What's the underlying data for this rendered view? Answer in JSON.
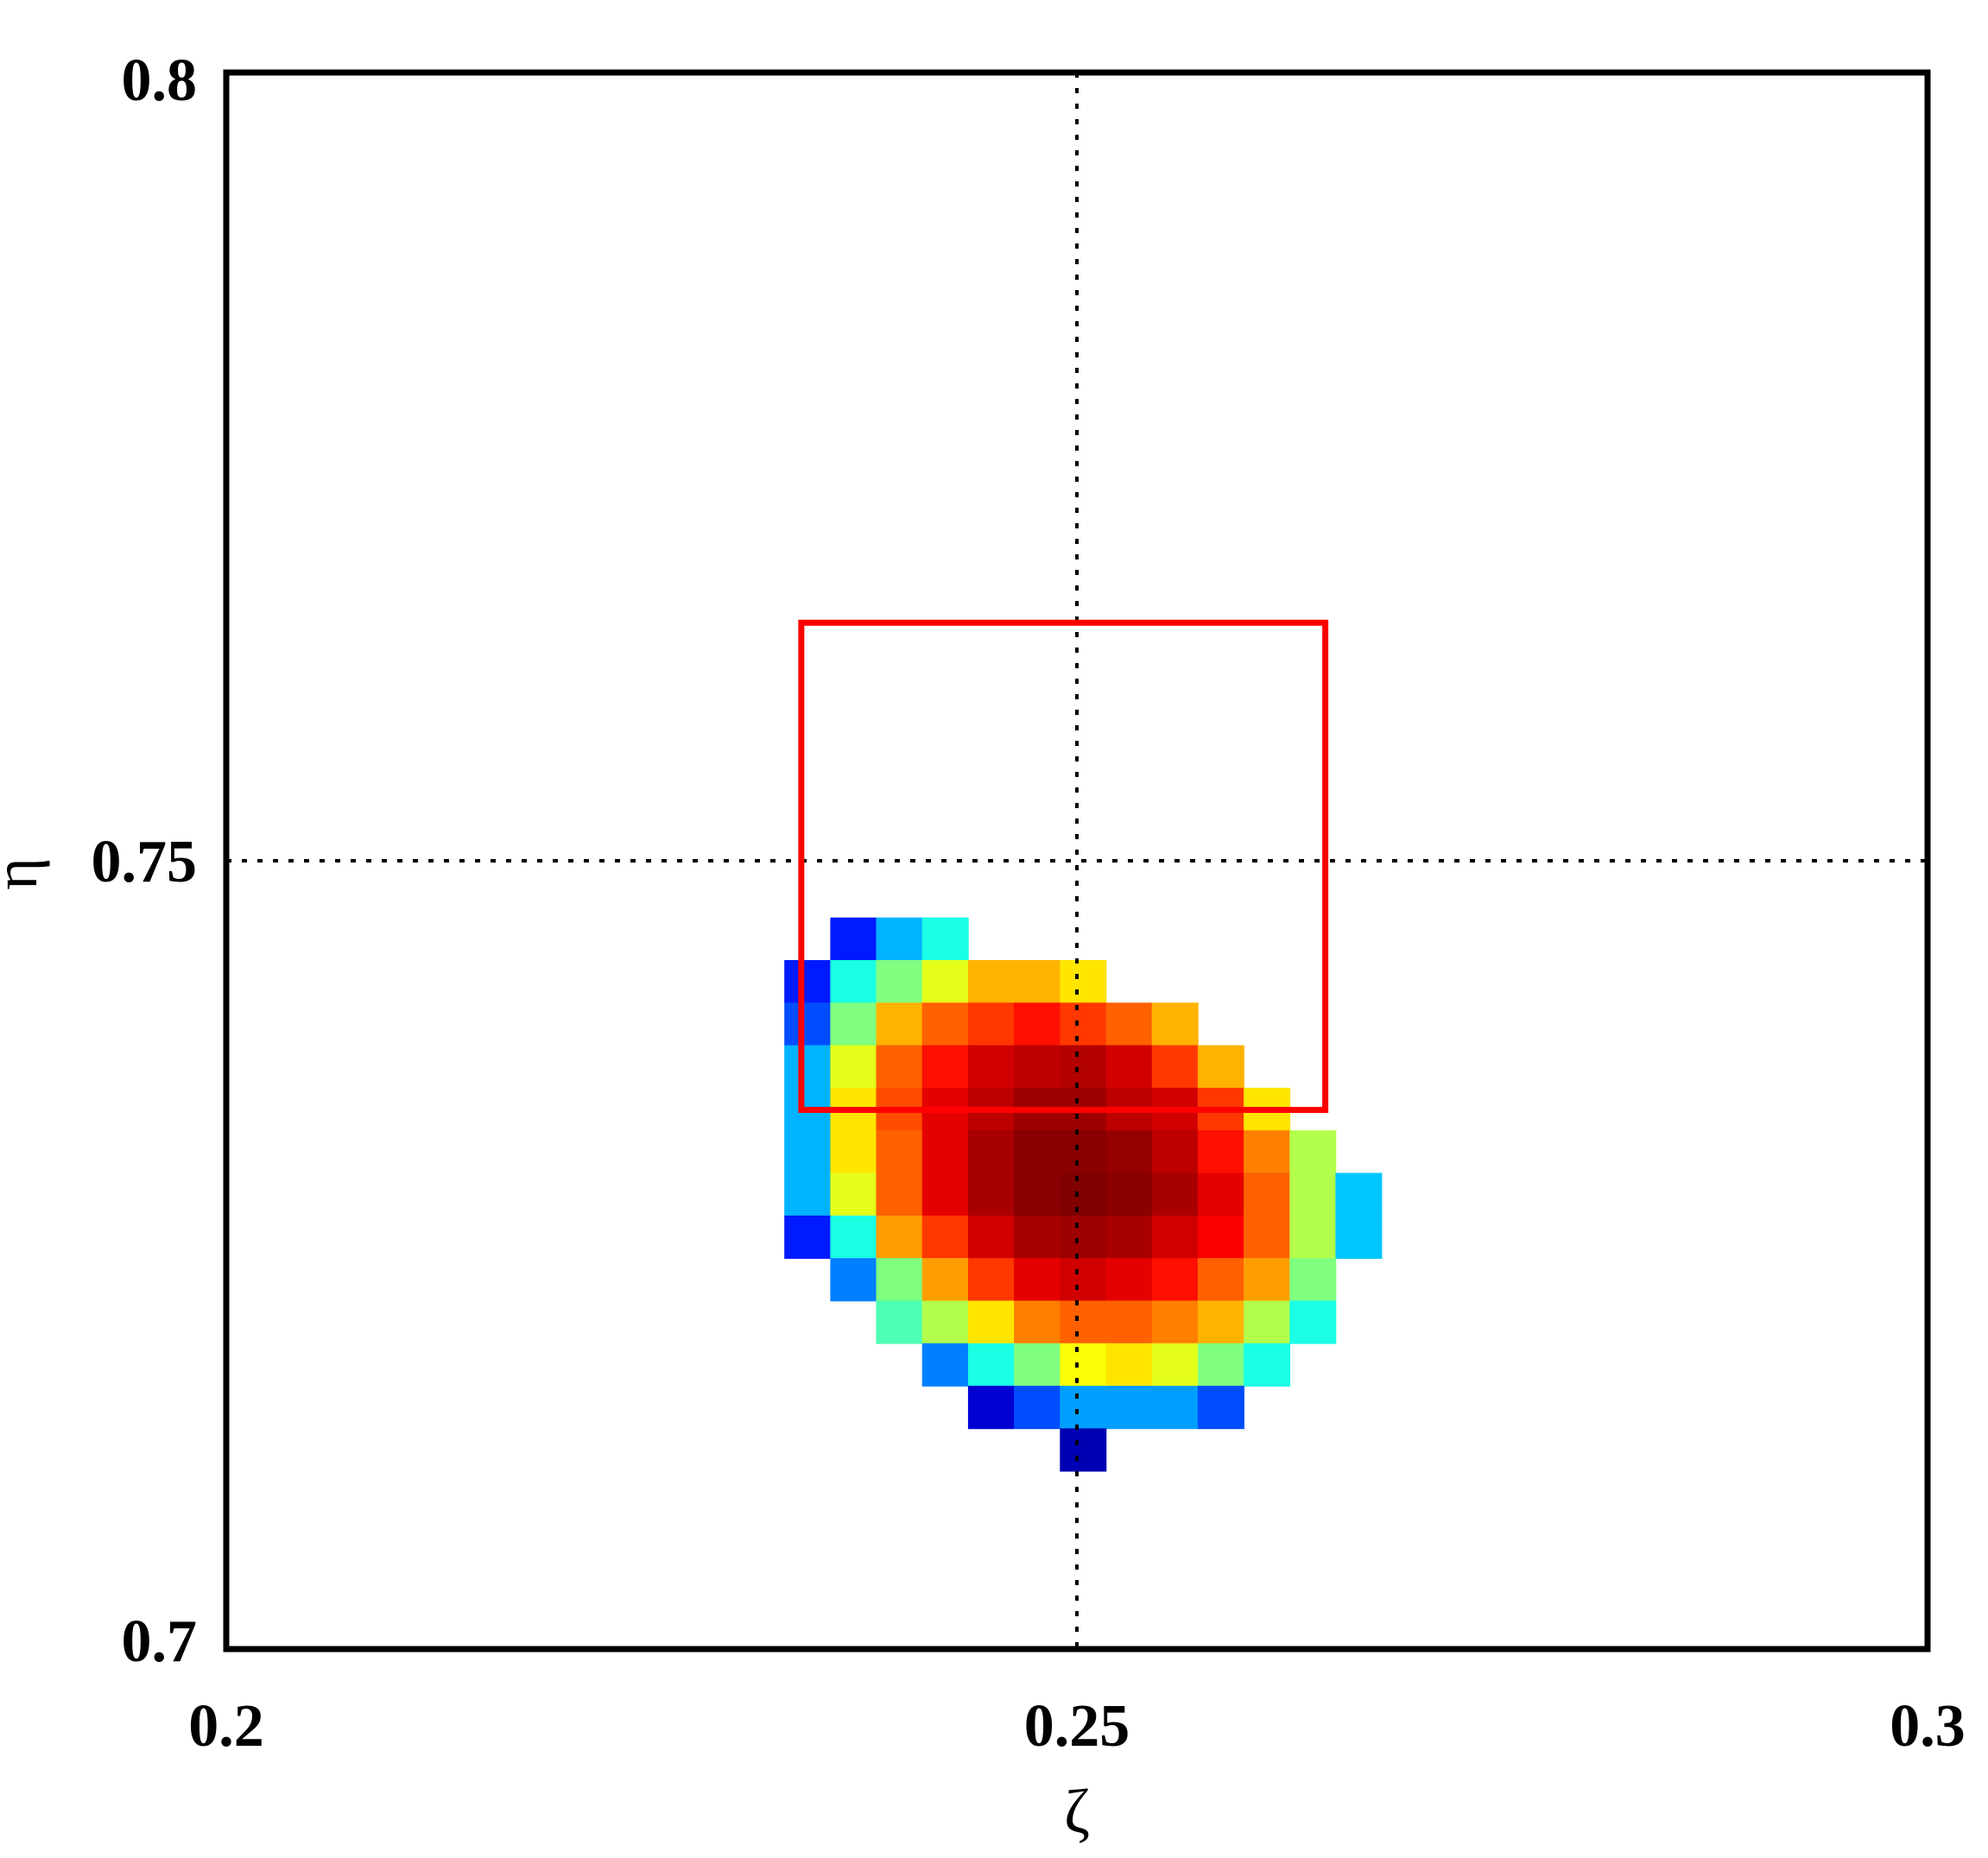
{
  "chart_data": {
    "type": "heatmap",
    "title": "",
    "xlabel": "ζ",
    "ylabel": "η",
    "xlim": [
      0.2,
      0.3
    ],
    "ylim": [
      0.7,
      0.8
    ],
    "xticks": [
      {
        "value": 0.2,
        "label": "0.2"
      },
      {
        "value": 0.25,
        "label": "0.25"
      },
      {
        "value": 0.3,
        "label": "0.3"
      }
    ],
    "yticks": [
      {
        "value": 0.7,
        "label": "0.7"
      },
      {
        "value": 0.75,
        "label": "0.75"
      },
      {
        "value": 0.8,
        "label": "0.8"
      }
    ],
    "reference_lines": {
      "x": 0.25,
      "y": 0.75,
      "style": "dotted",
      "color": "#000000"
    },
    "grid": false,
    "colormap": "jet",
    "cell_size": 0.0027,
    "grid_origin": {
      "x": 0.2328,
      "y": 0.7464
    },
    "highlight_box": {
      "x0": 0.2338,
      "x1": 0.2646,
      "y0": 0.7342,
      "y1": 0.7651,
      "color": "#ff0000"
    },
    "cells": [
      {
        "row": 0,
        "values": [
          null,
          0.15,
          0.3,
          0.4
        ]
      },
      {
        "row": 1,
        "values": [
          0.15,
          0.4,
          0.5,
          0.6,
          0.7,
          0.7,
          0.65
        ]
      },
      {
        "row": 2,
        "values": [
          0.2,
          0.5,
          0.7,
          0.78,
          0.82,
          0.86,
          0.82,
          0.78,
          0.7
        ]
      },
      {
        "row": 3,
        "values": [
          0.3,
          0.6,
          0.78,
          0.86,
          0.92,
          0.94,
          0.95,
          0.92,
          0.82,
          0.7
        ]
      },
      {
        "row": 4,
        "values": [
          0.3,
          0.65,
          0.8,
          0.9,
          0.94,
          0.97,
          0.97,
          0.94,
          0.92,
          0.82,
          0.65
        ]
      },
      {
        "row": 5,
        "values": [
          0.3,
          0.65,
          0.78,
          0.9,
          0.96,
          0.99,
          0.99,
          0.98,
          0.94,
          0.86,
          0.75,
          0.55
        ]
      },
      {
        "row": 6,
        "values": [
          0.3,
          0.6,
          0.78,
          0.9,
          0.96,
          0.99,
          1.0,
          0.99,
          0.96,
          0.9,
          0.78,
          0.55,
          0.32
        ]
      },
      {
        "row": 7,
        "values": [
          0.15,
          0.4,
          0.72,
          0.82,
          0.92,
          0.96,
          0.97,
          0.96,
          0.92,
          0.88,
          0.78,
          0.55,
          0.32
        ]
      },
      {
        "row": 8,
        "values": [
          null,
          0.25,
          0.5,
          0.72,
          0.82,
          0.9,
          0.92,
          0.9,
          0.86,
          0.78,
          0.72,
          0.5
        ]
      },
      {
        "row": 9,
        "values": [
          null,
          null,
          0.45,
          0.55,
          0.65,
          0.75,
          0.78,
          0.78,
          0.75,
          0.7,
          0.55,
          0.4
        ]
      },
      {
        "row": 10,
        "values": [
          null,
          null,
          null,
          0.25,
          0.4,
          0.5,
          0.62,
          0.65,
          0.6,
          0.5,
          0.4
        ]
      },
      {
        "row": 11,
        "values": [
          null,
          null,
          null,
          null,
          0.08,
          0.2,
          0.28,
          0.28,
          0.28,
          0.2
        ]
      },
      {
        "row": 12,
        "values": [
          null,
          null,
          null,
          null,
          null,
          null,
          0.05
        ]
      }
    ]
  }
}
